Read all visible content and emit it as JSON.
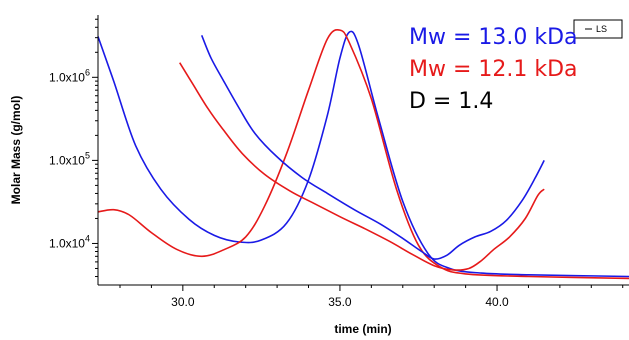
{
  "chart_data": {
    "type": "line",
    "title": "",
    "xlabel": "time (min)",
    "ylabel": "Molar Mass (g/mol)",
    "xlim": [
      27.3,
      44.2
    ],
    "ylim_log10": [
      3.5,
      6.75
    ],
    "y_scale": "log",
    "x_ticks": [
      30.0,
      35.0,
      40.0
    ],
    "x_tick_labels": [
      "30.0",
      "35.0",
      "40.0"
    ],
    "y_ticks": [
      10000,
      100000,
      1000000
    ],
    "y_tick_labels": [
      {
        "mantissa": "1.0x10",
        "exponent": "4"
      },
      {
        "mantissa": "1.0x10",
        "exponent": "5"
      },
      {
        "mantissa": "1.0x10",
        "exponent": "6"
      }
    ],
    "legend": {
      "position": "top-right",
      "entries": [
        "LS"
      ]
    },
    "annotations": [
      {
        "text": "Mw = 13.0 kDa",
        "color": "#1a1ae6"
      },
      {
        "text": "Mw = 12.1 kDa",
        "color": "#e61a1a"
      },
      {
        "text": "D = 1.4",
        "color": "#000000"
      }
    ],
    "series": [
      {
        "color": "#1a1ae6",
        "kind": "signal",
        "points": [
          [
            27.3,
            3100000
          ],
          [
            27.8,
            900000
          ],
          [
            28.5,
            150000
          ],
          [
            29.3,
            45000
          ],
          [
            30.2,
            19500
          ],
          [
            31.0,
            12500
          ],
          [
            31.8,
            10400
          ],
          [
            32.5,
            11000
          ],
          [
            33.3,
            17500
          ],
          [
            34.0,
            58000
          ],
          [
            34.6,
            350000
          ],
          [
            35.0,
            1700000
          ],
          [
            35.3,
            3500000
          ],
          [
            35.6,
            2400000
          ],
          [
            36.2,
            350000
          ],
          [
            37.0,
            32000
          ],
          [
            37.8,
            7600
          ],
          [
            38.5,
            5000
          ],
          [
            39.5,
            4400
          ],
          [
            41.0,
            4200
          ],
          [
            44.2,
            4000
          ]
        ]
      },
      {
        "color": "#e61a1a",
        "kind": "signal",
        "points": [
          [
            27.3,
            24000
          ],
          [
            27.8,
            25500
          ],
          [
            28.3,
            22000
          ],
          [
            29.0,
            13500
          ],
          [
            29.8,
            8500
          ],
          [
            30.6,
            7000
          ],
          [
            31.3,
            8400
          ],
          [
            32.0,
            12000
          ],
          [
            32.6,
            28000
          ],
          [
            33.3,
            120000
          ],
          [
            34.0,
            700000
          ],
          [
            34.6,
            2900000
          ],
          [
            35.0,
            3700000
          ],
          [
            35.3,
            2600000
          ],
          [
            36.0,
            550000
          ],
          [
            36.8,
            45000
          ],
          [
            37.5,
            9500
          ],
          [
            38.2,
            5200
          ],
          [
            39.0,
            4300
          ],
          [
            41.0,
            4000
          ],
          [
            44.2,
            3800
          ]
        ]
      },
      {
        "color": "#1a1ae6",
        "kind": "molar_mass",
        "points": [
          [
            30.6,
            3200000
          ],
          [
            30.9,
            1700000
          ],
          [
            31.3,
            900000
          ],
          [
            31.8,
            420000
          ],
          [
            32.3,
            210000
          ],
          [
            33.0,
            110000
          ],
          [
            33.8,
            62000
          ],
          [
            34.6,
            40000
          ],
          [
            35.5,
            25000
          ],
          [
            36.3,
            17000
          ],
          [
            37.0,
            11500
          ],
          [
            37.6,
            8000
          ],
          [
            38.0,
            6500
          ],
          [
            38.4,
            7200
          ],
          [
            38.8,
            9500
          ],
          [
            39.3,
            12000
          ],
          [
            39.8,
            14000
          ],
          [
            40.3,
            19000
          ],
          [
            40.8,
            33000
          ],
          [
            41.2,
            60000
          ],
          [
            41.5,
            100000
          ]
        ]
      },
      {
        "color": "#e61a1a",
        "kind": "molar_mass",
        "points": [
          [
            29.9,
            1500000
          ],
          [
            30.3,
            850000
          ],
          [
            30.8,
            420000
          ],
          [
            31.3,
            230000
          ],
          [
            31.9,
            120000
          ],
          [
            32.6,
            68000
          ],
          [
            33.4,
            43000
          ],
          [
            34.2,
            30000
          ],
          [
            35.0,
            21000
          ],
          [
            35.8,
            15000
          ],
          [
            36.6,
            10500
          ],
          [
            37.3,
            7400
          ],
          [
            38.0,
            5400
          ],
          [
            38.6,
            4800
          ],
          [
            39.1,
            5000
          ],
          [
            39.5,
            6200
          ],
          [
            39.9,
            8500
          ],
          [
            40.4,
            12000
          ],
          [
            40.9,
            20000
          ],
          [
            41.3,
            38000
          ],
          [
            41.5,
            45000
          ]
        ]
      }
    ]
  }
}
